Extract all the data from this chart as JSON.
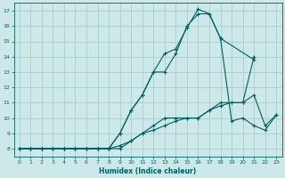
{
  "xlabel": "Humidex (Indice chaleur)",
  "bg_color": "#cce8e8",
  "grid_color": "#aacccc",
  "line_color": "#006060",
  "xlim": [
    -0.5,
    23.5
  ],
  "ylim": [
    7.5,
    17.5
  ],
  "xticks": [
    0,
    1,
    2,
    3,
    4,
    5,
    6,
    7,
    8,
    9,
    10,
    11,
    12,
    13,
    14,
    15,
    16,
    17,
    18,
    19,
    20,
    21,
    22,
    23
  ],
  "yticks": [
    8,
    9,
    10,
    11,
    12,
    13,
    14,
    15,
    16,
    17
  ],
  "line1_x": [
    0,
    1,
    2,
    3,
    4,
    5,
    6,
    7,
    8,
    9,
    10,
    11,
    12,
    13,
    14,
    15,
    16,
    17,
    18,
    19,
    20,
    21
  ],
  "line1_y": [
    8,
    8,
    8,
    8,
    8,
    8,
    8,
    8,
    8,
    8,
    8.5,
    9,
    9.5,
    10,
    10,
    10,
    10,
    10.5,
    11,
    11,
    11,
    14
  ],
  "line2_x": [
    0,
    1,
    2,
    3,
    4,
    5,
    6,
    7,
    8,
    9,
    10,
    11,
    12,
    13,
    14,
    15,
    16,
    17,
    18,
    19,
    20,
    21,
    22,
    23
  ],
  "line2_y": [
    8,
    8,
    8,
    8,
    8,
    8,
    8,
    8,
    8,
    8.2,
    8.5,
    9,
    9.2,
    9.5,
    9.8,
    10,
    10,
    10.5,
    10.8,
    11,
    11,
    11.5,
    9.5,
    10.2
  ],
  "line3_x": [
    0,
    1,
    2,
    3,
    4,
    5,
    6,
    7,
    8,
    9,
    10,
    11,
    12,
    13,
    14,
    15,
    16,
    17,
    18,
    21
  ],
  "line3_y": [
    8,
    8,
    8,
    8,
    8,
    8,
    8,
    8,
    8,
    9,
    10.5,
    11.5,
    13,
    13,
    14.2,
    16,
    16.8,
    16.8,
    15.2,
    13.8
  ],
  "line4_x": [
    0,
    1,
    2,
    3,
    4,
    5,
    6,
    7,
    8,
    9,
    10,
    11,
    12,
    13,
    14,
    15,
    16,
    17,
    18,
    19,
    20,
    21,
    22,
    23
  ],
  "line4_y": [
    8,
    8,
    8,
    8,
    8,
    8,
    8,
    8,
    8,
    9,
    10.5,
    11.5,
    13,
    14.2,
    14.5,
    15.9,
    17.1,
    16.8,
    15.2,
    9.8,
    10,
    9.5,
    9.2,
    10.2
  ]
}
